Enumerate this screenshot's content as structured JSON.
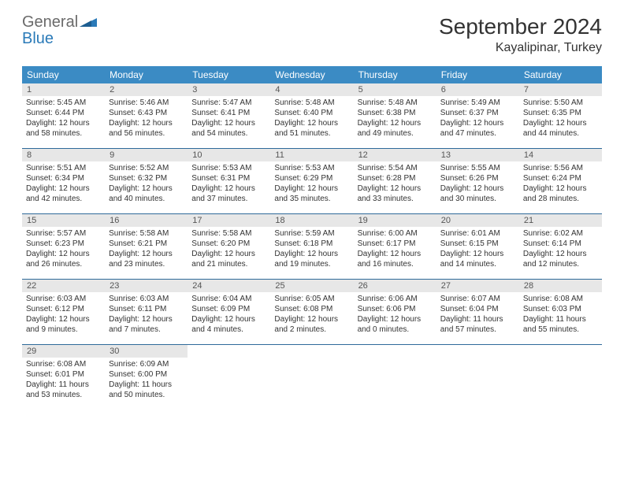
{
  "brand": {
    "word1": "General",
    "word2": "Blue",
    "color_gray": "#6a6a6a",
    "color_blue": "#2a7ab8"
  },
  "header": {
    "month_title": "September 2024",
    "location": "Kayalipinar, Turkey"
  },
  "style": {
    "header_bg": "#3b8bc4",
    "header_text": "#ffffff",
    "daynum_bg": "#e7e7e7",
    "border_color": "#2f6a9a",
    "body_text": "#333333",
    "font_size_body": 10,
    "font_size_weekday": 12,
    "font_size_title": 28,
    "font_size_location": 16
  },
  "weekdays": [
    "Sunday",
    "Monday",
    "Tuesday",
    "Wednesday",
    "Thursday",
    "Friday",
    "Saturday"
  ],
  "weeks": [
    [
      {
        "num": "1",
        "sunrise": "Sunrise: 5:45 AM",
        "sunset": "Sunset: 6:44 PM",
        "day1": "Daylight: 12 hours",
        "day2": "and 58 minutes."
      },
      {
        "num": "2",
        "sunrise": "Sunrise: 5:46 AM",
        "sunset": "Sunset: 6:43 PM",
        "day1": "Daylight: 12 hours",
        "day2": "and 56 minutes."
      },
      {
        "num": "3",
        "sunrise": "Sunrise: 5:47 AM",
        "sunset": "Sunset: 6:41 PM",
        "day1": "Daylight: 12 hours",
        "day2": "and 54 minutes."
      },
      {
        "num": "4",
        "sunrise": "Sunrise: 5:48 AM",
        "sunset": "Sunset: 6:40 PM",
        "day1": "Daylight: 12 hours",
        "day2": "and 51 minutes."
      },
      {
        "num": "5",
        "sunrise": "Sunrise: 5:48 AM",
        "sunset": "Sunset: 6:38 PM",
        "day1": "Daylight: 12 hours",
        "day2": "and 49 minutes."
      },
      {
        "num": "6",
        "sunrise": "Sunrise: 5:49 AM",
        "sunset": "Sunset: 6:37 PM",
        "day1": "Daylight: 12 hours",
        "day2": "and 47 minutes."
      },
      {
        "num": "7",
        "sunrise": "Sunrise: 5:50 AM",
        "sunset": "Sunset: 6:35 PM",
        "day1": "Daylight: 12 hours",
        "day2": "and 44 minutes."
      }
    ],
    [
      {
        "num": "8",
        "sunrise": "Sunrise: 5:51 AM",
        "sunset": "Sunset: 6:34 PM",
        "day1": "Daylight: 12 hours",
        "day2": "and 42 minutes."
      },
      {
        "num": "9",
        "sunrise": "Sunrise: 5:52 AM",
        "sunset": "Sunset: 6:32 PM",
        "day1": "Daylight: 12 hours",
        "day2": "and 40 minutes."
      },
      {
        "num": "10",
        "sunrise": "Sunrise: 5:53 AM",
        "sunset": "Sunset: 6:31 PM",
        "day1": "Daylight: 12 hours",
        "day2": "and 37 minutes."
      },
      {
        "num": "11",
        "sunrise": "Sunrise: 5:53 AM",
        "sunset": "Sunset: 6:29 PM",
        "day1": "Daylight: 12 hours",
        "day2": "and 35 minutes."
      },
      {
        "num": "12",
        "sunrise": "Sunrise: 5:54 AM",
        "sunset": "Sunset: 6:28 PM",
        "day1": "Daylight: 12 hours",
        "day2": "and 33 minutes."
      },
      {
        "num": "13",
        "sunrise": "Sunrise: 5:55 AM",
        "sunset": "Sunset: 6:26 PM",
        "day1": "Daylight: 12 hours",
        "day2": "and 30 minutes."
      },
      {
        "num": "14",
        "sunrise": "Sunrise: 5:56 AM",
        "sunset": "Sunset: 6:24 PM",
        "day1": "Daylight: 12 hours",
        "day2": "and 28 minutes."
      }
    ],
    [
      {
        "num": "15",
        "sunrise": "Sunrise: 5:57 AM",
        "sunset": "Sunset: 6:23 PM",
        "day1": "Daylight: 12 hours",
        "day2": "and 26 minutes."
      },
      {
        "num": "16",
        "sunrise": "Sunrise: 5:58 AM",
        "sunset": "Sunset: 6:21 PM",
        "day1": "Daylight: 12 hours",
        "day2": "and 23 minutes."
      },
      {
        "num": "17",
        "sunrise": "Sunrise: 5:58 AM",
        "sunset": "Sunset: 6:20 PM",
        "day1": "Daylight: 12 hours",
        "day2": "and 21 minutes."
      },
      {
        "num": "18",
        "sunrise": "Sunrise: 5:59 AM",
        "sunset": "Sunset: 6:18 PM",
        "day1": "Daylight: 12 hours",
        "day2": "and 19 minutes."
      },
      {
        "num": "19",
        "sunrise": "Sunrise: 6:00 AM",
        "sunset": "Sunset: 6:17 PM",
        "day1": "Daylight: 12 hours",
        "day2": "and 16 minutes."
      },
      {
        "num": "20",
        "sunrise": "Sunrise: 6:01 AM",
        "sunset": "Sunset: 6:15 PM",
        "day1": "Daylight: 12 hours",
        "day2": "and 14 minutes."
      },
      {
        "num": "21",
        "sunrise": "Sunrise: 6:02 AM",
        "sunset": "Sunset: 6:14 PM",
        "day1": "Daylight: 12 hours",
        "day2": "and 12 minutes."
      }
    ],
    [
      {
        "num": "22",
        "sunrise": "Sunrise: 6:03 AM",
        "sunset": "Sunset: 6:12 PM",
        "day1": "Daylight: 12 hours",
        "day2": "and 9 minutes."
      },
      {
        "num": "23",
        "sunrise": "Sunrise: 6:03 AM",
        "sunset": "Sunset: 6:11 PM",
        "day1": "Daylight: 12 hours",
        "day2": "and 7 minutes."
      },
      {
        "num": "24",
        "sunrise": "Sunrise: 6:04 AM",
        "sunset": "Sunset: 6:09 PM",
        "day1": "Daylight: 12 hours",
        "day2": "and 4 minutes."
      },
      {
        "num": "25",
        "sunrise": "Sunrise: 6:05 AM",
        "sunset": "Sunset: 6:08 PM",
        "day1": "Daylight: 12 hours",
        "day2": "and 2 minutes."
      },
      {
        "num": "26",
        "sunrise": "Sunrise: 6:06 AM",
        "sunset": "Sunset: 6:06 PM",
        "day1": "Daylight: 12 hours",
        "day2": "and 0 minutes."
      },
      {
        "num": "27",
        "sunrise": "Sunrise: 6:07 AM",
        "sunset": "Sunset: 6:04 PM",
        "day1": "Daylight: 11 hours",
        "day2": "and 57 minutes."
      },
      {
        "num": "28",
        "sunrise": "Sunrise: 6:08 AM",
        "sunset": "Sunset: 6:03 PM",
        "day1": "Daylight: 11 hours",
        "day2": "and 55 minutes."
      }
    ],
    [
      {
        "num": "29",
        "sunrise": "Sunrise: 6:08 AM",
        "sunset": "Sunset: 6:01 PM",
        "day1": "Daylight: 11 hours",
        "day2": "and 53 minutes."
      },
      {
        "num": "30",
        "sunrise": "Sunrise: 6:09 AM",
        "sunset": "Sunset: 6:00 PM",
        "day1": "Daylight: 11 hours",
        "day2": "and 50 minutes."
      },
      {
        "num": "",
        "sunrise": "",
        "sunset": "",
        "day1": "",
        "day2": ""
      },
      {
        "num": "",
        "sunrise": "",
        "sunset": "",
        "day1": "",
        "day2": ""
      },
      {
        "num": "",
        "sunrise": "",
        "sunset": "",
        "day1": "",
        "day2": ""
      },
      {
        "num": "",
        "sunrise": "",
        "sunset": "",
        "day1": "",
        "day2": ""
      },
      {
        "num": "",
        "sunrise": "",
        "sunset": "",
        "day1": "",
        "day2": ""
      }
    ]
  ]
}
